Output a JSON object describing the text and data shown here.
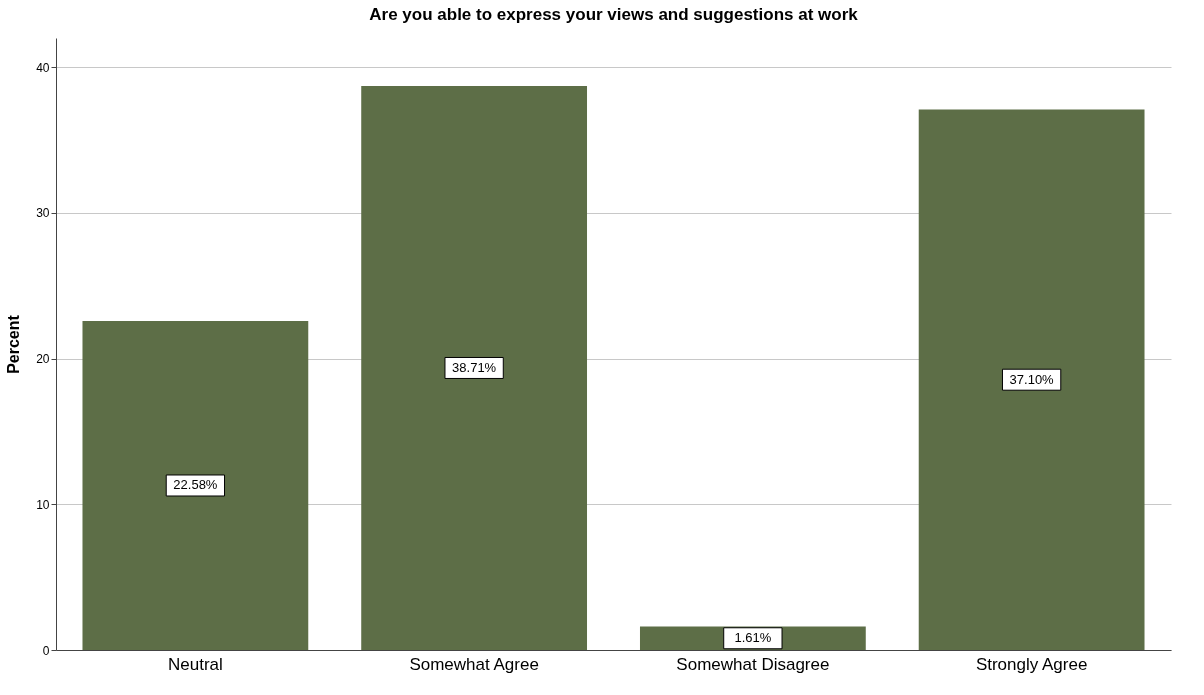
{
  "chart_data": {
    "type": "bar",
    "title": "Are you able to express your views and suggestions at work",
    "ylabel": "Percent",
    "categories": [
      "Neutral",
      "Somewhat Agree",
      "Somewhat Disagree",
      "Strongly Agree"
    ],
    "values": [
      22.58,
      38.71,
      1.61,
      37.1
    ],
    "value_labels": [
      "22.58%",
      "38.71%",
      "1.61%",
      "37.10%"
    ],
    "color": "#5d6e47",
    "ylim": [
      0,
      42
    ],
    "yticks": [
      0,
      10,
      20,
      30,
      40
    ],
    "grid": "y"
  }
}
